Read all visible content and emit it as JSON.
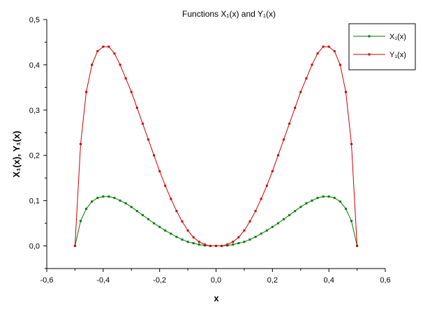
{
  "chart_data": {
    "type": "line",
    "title": "Functions X₁(x) and Y₁(x)",
    "xlabel": "x",
    "ylabel": "X₁(x), Y₁(x)",
    "xlim": [
      -0.6,
      0.6
    ],
    "ylim": [
      -0.05,
      0.5
    ],
    "x_ticks": [
      -0.6,
      -0.4,
      -0.2,
      0.0,
      0.2,
      0.4,
      0.6
    ],
    "x_tick_labels": [
      "-0,6",
      "-0,4",
      "-0,2",
      "0,0",
      "0,2",
      "0,4",
      "0,6"
    ],
    "y_ticks": [
      0.0,
      0.1,
      0.2,
      0.3,
      0.4,
      0.5
    ],
    "y_tick_labels": [
      "0,0",
      "0,1",
      "0,2",
      "0,3",
      "0,4",
      "0,5"
    ],
    "grid": false,
    "legend_position": "top-right",
    "x": [
      -0.5,
      -0.48,
      -0.46,
      -0.44,
      -0.42,
      -0.4,
      -0.38,
      -0.36,
      -0.34,
      -0.32,
      -0.3,
      -0.28,
      -0.26,
      -0.24,
      -0.22,
      -0.2,
      -0.18,
      -0.16,
      -0.14,
      -0.12,
      -0.1,
      -0.08,
      -0.06,
      -0.04,
      -0.02,
      0.0,
      0.02,
      0.04,
      0.06,
      0.08,
      0.1,
      0.12,
      0.14,
      0.16,
      0.18,
      0.2,
      0.22,
      0.24,
      0.26,
      0.28,
      0.3,
      0.32,
      0.34,
      0.36,
      0.38,
      0.4,
      0.42,
      0.44,
      0.46,
      0.48,
      0.5
    ],
    "series": [
      {
        "name": "X₁(x)",
        "color": "#007a00",
        "values": [
          0.0,
          0.055,
          0.082,
          0.098,
          0.106,
          0.109,
          0.109,
          0.106,
          0.1,
          0.094,
          0.086,
          0.077,
          0.068,
          0.059,
          0.05,
          0.042,
          0.034,
          0.027,
          0.02,
          0.014,
          0.009,
          0.006,
          0.003,
          0.001,
          0.0,
          0.0,
          0.0,
          0.001,
          0.003,
          0.006,
          0.009,
          0.014,
          0.02,
          0.027,
          0.034,
          0.042,
          0.05,
          0.059,
          0.068,
          0.077,
          0.086,
          0.094,
          0.1,
          0.106,
          0.109,
          0.109,
          0.106,
          0.098,
          0.082,
          0.055,
          0.0
        ]
      },
      {
        "name": "Y₁(x)",
        "color": "#cc0000",
        "values": [
          0.0,
          0.225,
          0.34,
          0.4,
          0.43,
          0.44,
          0.44,
          0.425,
          0.4,
          0.37,
          0.34,
          0.305,
          0.27,
          0.235,
          0.2,
          0.165,
          0.133,
          0.104,
          0.077,
          0.054,
          0.034,
          0.019,
          0.009,
          0.003,
          0.0,
          0.0,
          0.0,
          0.003,
          0.009,
          0.019,
          0.034,
          0.054,
          0.077,
          0.104,
          0.133,
          0.165,
          0.2,
          0.235,
          0.27,
          0.305,
          0.34,
          0.37,
          0.4,
          0.425,
          0.44,
          0.44,
          0.43,
          0.4,
          0.34,
          0.225,
          0.0
        ]
      }
    ]
  }
}
